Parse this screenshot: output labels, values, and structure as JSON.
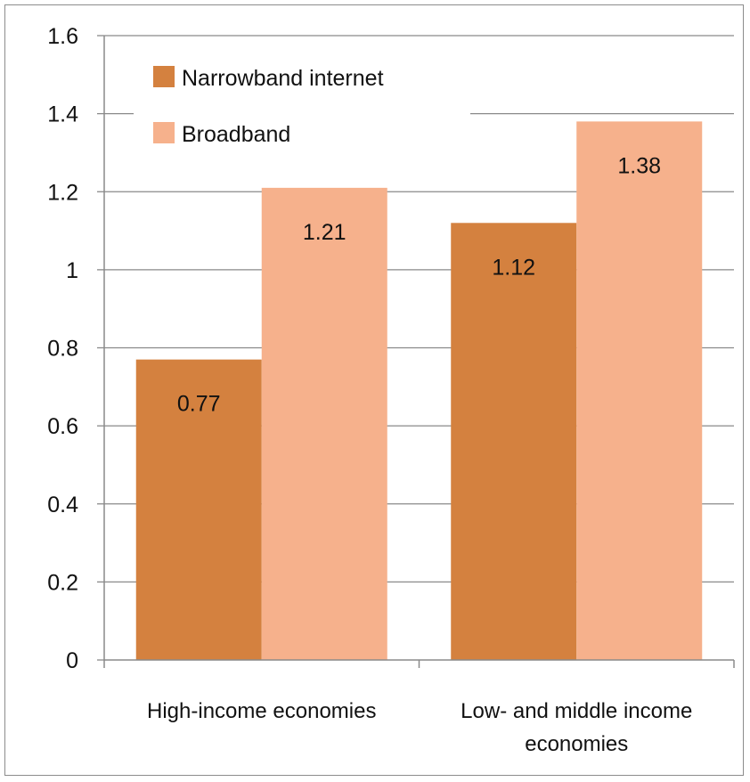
{
  "chart_data": {
    "type": "bar",
    "categories": [
      [
        "High-income economies"
      ],
      [
        "Low- and middle income",
        "economies"
      ]
    ],
    "series": [
      {
        "name": "Narrowband internet",
        "values": [
          0.77,
          1.12
        ],
        "labels": [
          "0.77",
          "1.12"
        ],
        "color": "#D4813F"
      },
      {
        "name": "Broadband",
        "values": [
          1.21,
          1.38
        ],
        "labels": [
          "1.21",
          "1.38"
        ],
        "color": "#F6B18C"
      }
    ],
    "yticks": [
      "0",
      "0.2",
      "0.4",
      "0.6",
      "0.8",
      "1",
      "1.2",
      "1.4",
      "1.6"
    ],
    "ylim": [
      0,
      1.6
    ],
    "grid": true,
    "legend_position": "top-left",
    "title": "",
    "xlabel": "",
    "ylabel": ""
  }
}
